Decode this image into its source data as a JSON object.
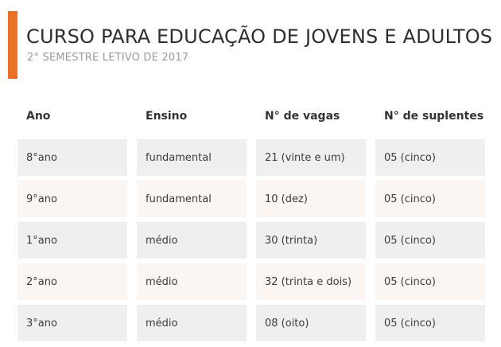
{
  "header": {
    "title": "CURSO PARA EDUCAÇÃO DE JOVENS E ADULTOS",
    "subtitle": "2° SEMESTRE LETIVO DE 2017",
    "accent_color": "#ee7023"
  },
  "table": {
    "columns": [
      "Ano",
      "Ensino",
      "N° de vagas",
      "N° de suplentes"
    ],
    "rows": [
      [
        "8°ano",
        "fundamental",
        "21 (vinte e um)",
        "05 (cinco)"
      ],
      [
        "9°ano",
        "fundamental",
        "10 (dez)",
        "05 (cinco)"
      ],
      [
        "1°ano",
        "médio",
        "30 (trinta)",
        "05 (cinco)"
      ],
      [
        "2°ano",
        "médio",
        "32 (trinta e dois)",
        "05 (cinco)"
      ],
      [
        "3°ano",
        "médio",
        "08 (oito)",
        "05 (cinco)"
      ]
    ],
    "row_colors": [
      "#efefef",
      "#fbf6f1"
    ]
  }
}
